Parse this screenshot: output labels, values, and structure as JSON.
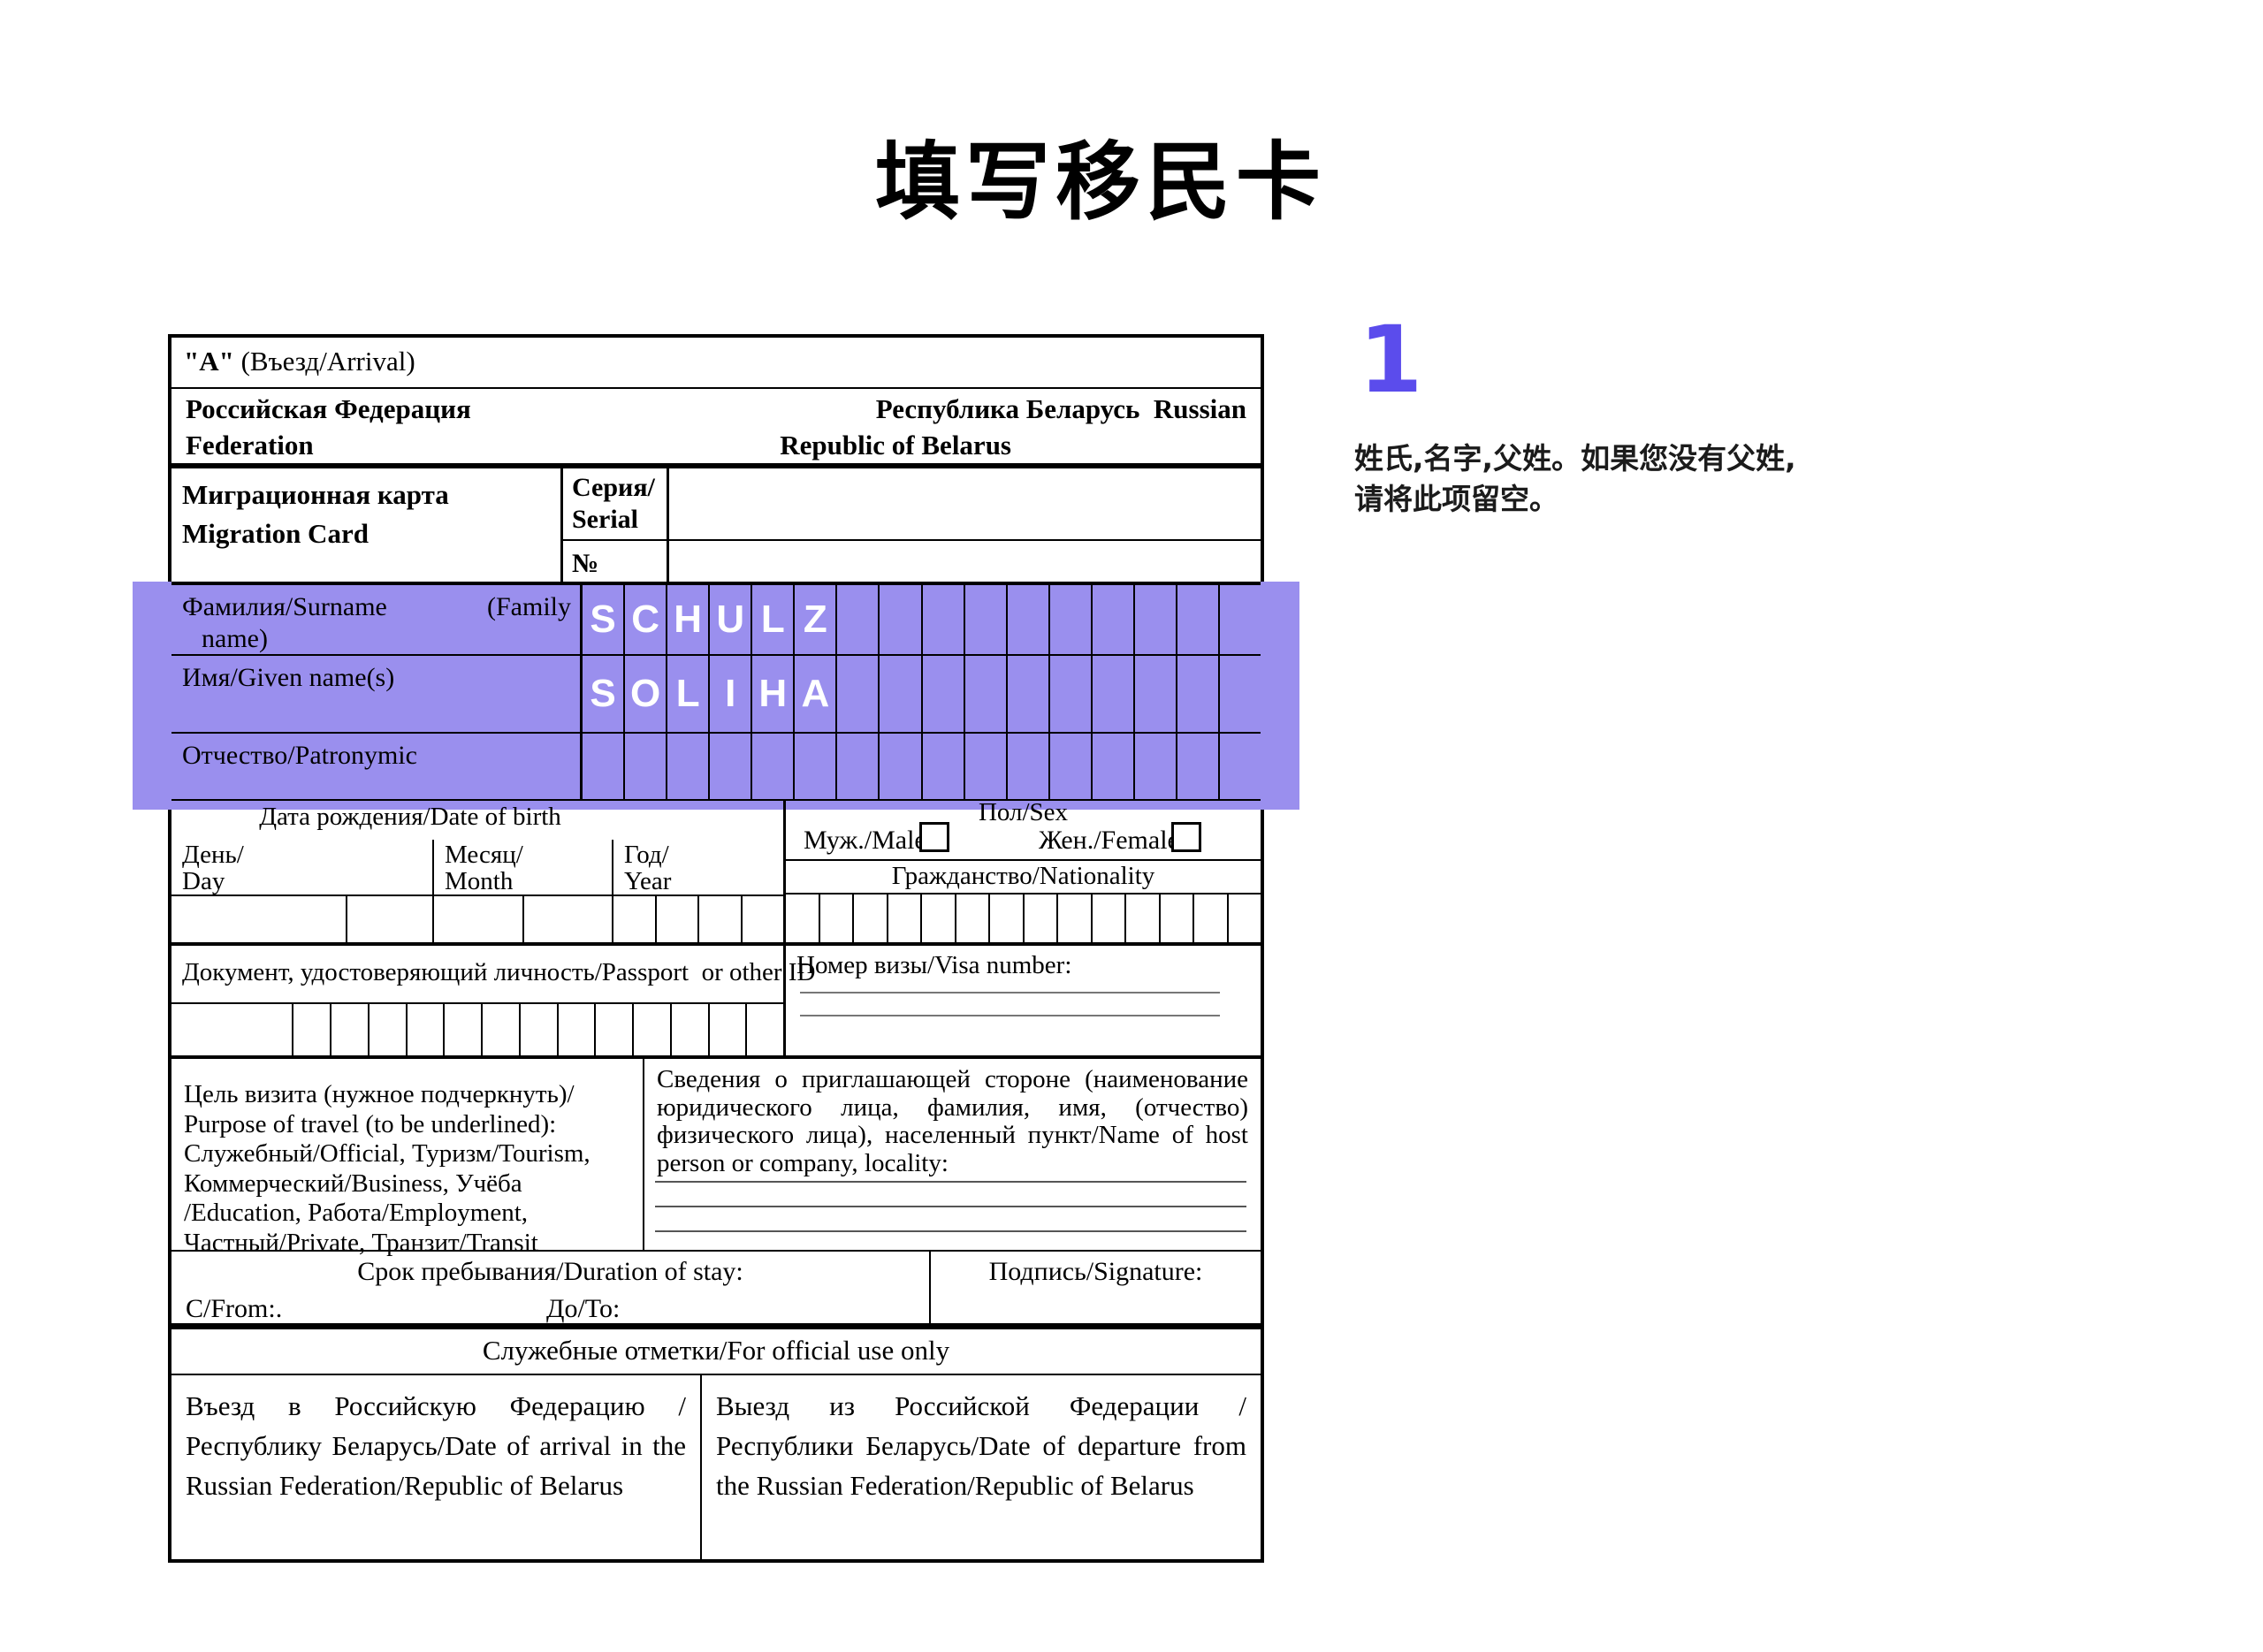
{
  "page": {
    "title": "填写移民卡"
  },
  "annotation": {
    "step_number": "1",
    "note_line1": "姓氏,名字,父姓。如果您没有父姓,",
    "note_line2": "请将此项留空。",
    "accent_color": "#5B4CEC"
  },
  "highlight": {
    "color": "#9A8FEE"
  },
  "form": {
    "header": {
      "card_type_bold": "\"A\"",
      "card_type_rest": " (Въезд/Arrival)",
      "country_ru_left": "Российская Федерация",
      "country_ru_right": "Республика Беларусь  Russian",
      "country_en_left": "Federation",
      "country_en_right": "Republic of Belarus"
    },
    "card": {
      "title_ru": "Миграционная карта",
      "title_en": "Migration Card",
      "serial_ru": "Серия/",
      "serial_en": "Serial",
      "number_label": "№",
      "serial_value": "",
      "number_value": ""
    },
    "names": {
      "surname_ru": "Фамилия/Surname",
      "surname_paren1": "(Family",
      "surname_paren2": "name)",
      "given_label": "Имя/Given name(s)",
      "patronymic_label": "Отчество/Patronymic",
      "surname_value": "SCHULZ",
      "given_value": "SOLIHA",
      "patronymic_value": "",
      "columns": 16
    },
    "birth": {
      "header": "Дата рождения/Date of birth",
      "day_ru": "День/",
      "day_en": "Day",
      "month_ru": "Месяц/",
      "month_en": "Month",
      "year_ru": "Год/",
      "year_en": "Year",
      "day_cells": 2,
      "month_cells": 2,
      "year_cells": 4,
      "day_value": "",
      "month_value": "",
      "year_value": ""
    },
    "sex": {
      "header": "Пол/Sex",
      "male_label": "Муж./Male",
      "female_label": "Жен./Female",
      "male_checked": false,
      "female_checked": false
    },
    "nationality": {
      "label": "Гражданство/Nationality",
      "cells": 14,
      "value": ""
    },
    "document": {
      "label": "Документ, удостоверяющий личность/Passport  or other ID",
      "cells": 14,
      "value": ""
    },
    "visa": {
      "label": "Номер визы/Visa number:",
      "value": ""
    },
    "purpose": {
      "lines": [
        "Цель визита (нужное подчеркнуть)/",
        " Purpose of travel (to be underlined):",
        "Служебный/Official, Туризм/Tourism,",
        "Коммерческий/Business, Учёба",
        "/Education, Работа/Employment,",
        "Частный/Private, Транзит/Transit"
      ],
      "host_text": "Сведения о приглашающей стороне (наименование юридического лица, фамилия, имя, (отчество) физического лица), населенный пункт/Name of host person or company, locality:",
      "host_value": ""
    },
    "stay": {
      "header": "Срок пребывания/Duration of stay:",
      "from_label": "C/From:.",
      "to_label": "До/To:",
      "signature_label": "Подпись/Signature:",
      "from_value": "",
      "to_value": "",
      "signature_value": ""
    },
    "official": {
      "header": "Служебные отметки/For official use only",
      "arrival_text": "Въезд в Российскую Федерацию /Республику Беларусь/Date of arrival in the Russian Federation/Republic of Belarus",
      "departure_text": "Выезд из Российской Федерации /Республики Беларусь/Date of departure from the Russian Federation/Republic of Belarus"
    }
  }
}
